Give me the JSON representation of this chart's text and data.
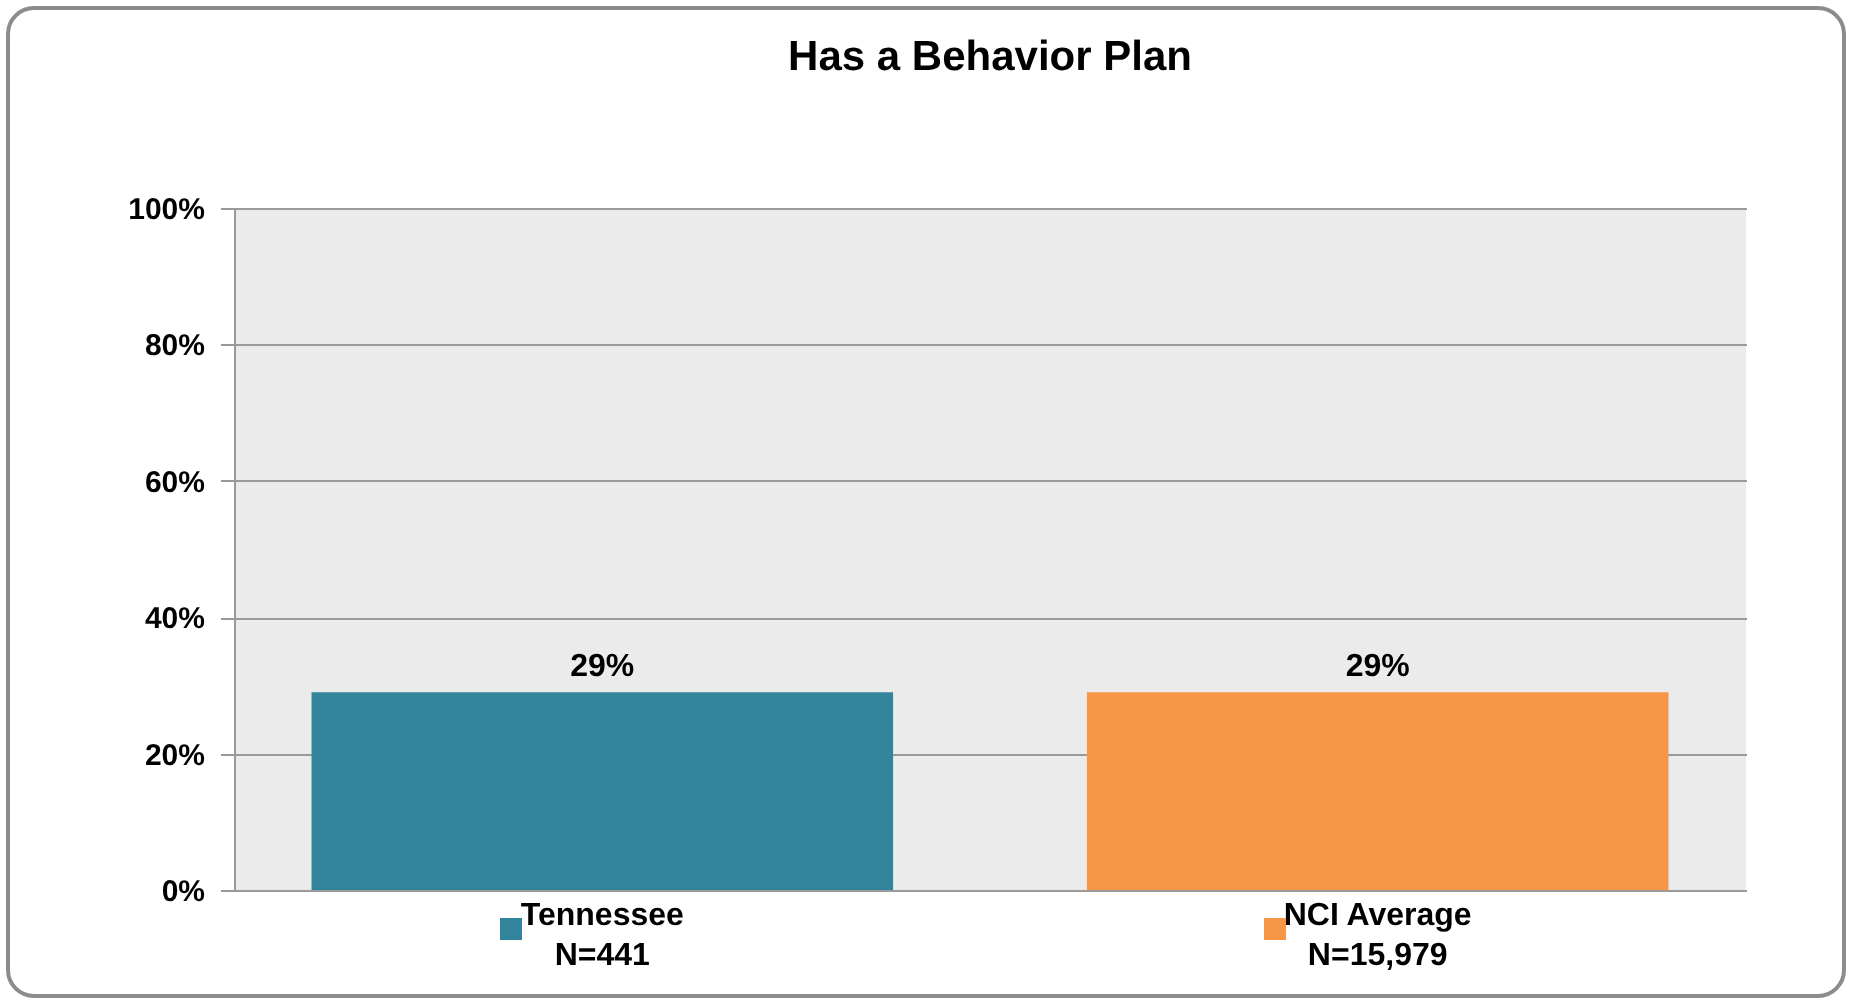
{
  "chart_data": {
    "type": "bar",
    "title": "Has a Behavior Plan",
    "categories": [
      "Tennessee\nN=441",
      "NCI Average\nN=15,979"
    ],
    "values": [
      29,
      29
    ],
    "colors": [
      "#31849b",
      "#f79646"
    ],
    "value_labels": [
      "29%",
      "29%"
    ],
    "ylim": [
      0,
      100
    ],
    "yticks": [
      {
        "value": 0,
        "label": "0%"
      },
      {
        "value": 20,
        "label": "20%"
      },
      {
        "value": 40,
        "label": "40%"
      },
      {
        "value": 60,
        "label": "60%"
      },
      {
        "value": 80,
        "label": "80%"
      },
      {
        "value": 100,
        "label": "100%"
      }
    ],
    "grid": "y"
  }
}
